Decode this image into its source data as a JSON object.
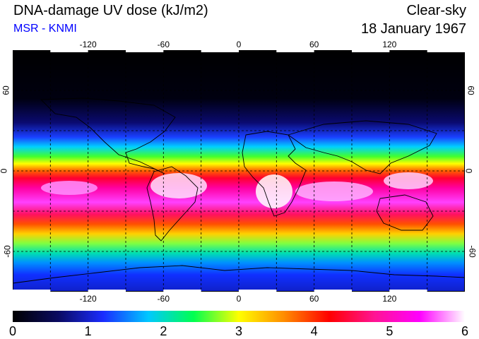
{
  "header": {
    "title": "DNA-damage UV dose (kJ/m2)",
    "source": "MSR - KNMI",
    "sky_condition": "Clear-sky",
    "date": "18 January 1967"
  },
  "map": {
    "lon_labels": [
      "-120",
      "-60",
      "0",
      "60",
      "120"
    ],
    "lon_values": [
      -120,
      -60,
      0,
      60,
      120
    ],
    "lat_labels": [
      "60",
      "0",
      "-60"
    ],
    "lat_values": [
      60,
      0,
      -60
    ],
    "lon_range": [
      -180,
      180
    ],
    "lat_range": [
      -90,
      90
    ],
    "grid": true
  },
  "colorbar": {
    "tick_labels": [
      "0",
      "1",
      "2",
      "3",
      "4",
      "5",
      "6"
    ],
    "min": 0,
    "max": 6,
    "colors": [
      "#000000",
      "#0a0a60",
      "#1a2cff",
      "#00c8ff",
      "#00ff50",
      "#ffff00",
      "#ff8c00",
      "#ff0000",
      "#ff1493",
      "#ff00ff",
      "#ffffff"
    ]
  }
}
